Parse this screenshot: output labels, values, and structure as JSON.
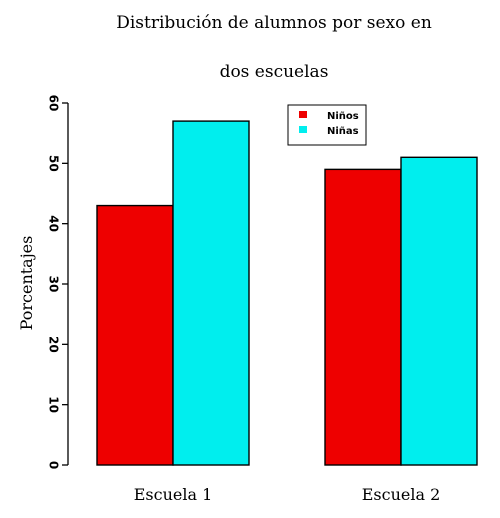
{
  "chart_data": {
    "type": "bar",
    "title_lines": [
      "Distribución de alumnos por sexo en",
      "dos escuelas"
    ],
    "xlabel": "",
    "ylabel": "Porcentajes",
    "categories": [
      "Escuela 1",
      "Escuela 2"
    ],
    "series": [
      {
        "name": "Niños",
        "color": "#ee0000",
        "values": [
          43,
          49
        ]
      },
      {
        "name": "Niñas",
        "color": "#00eeee",
        "values": [
          57,
          51
        ]
      }
    ],
    "ylim": [
      0,
      60
    ],
    "yticks": [
      "0",
      "10",
      "20",
      "30",
      "40",
      "50",
      "60"
    ],
    "legend_position": "top-right",
    "grid": false
  }
}
